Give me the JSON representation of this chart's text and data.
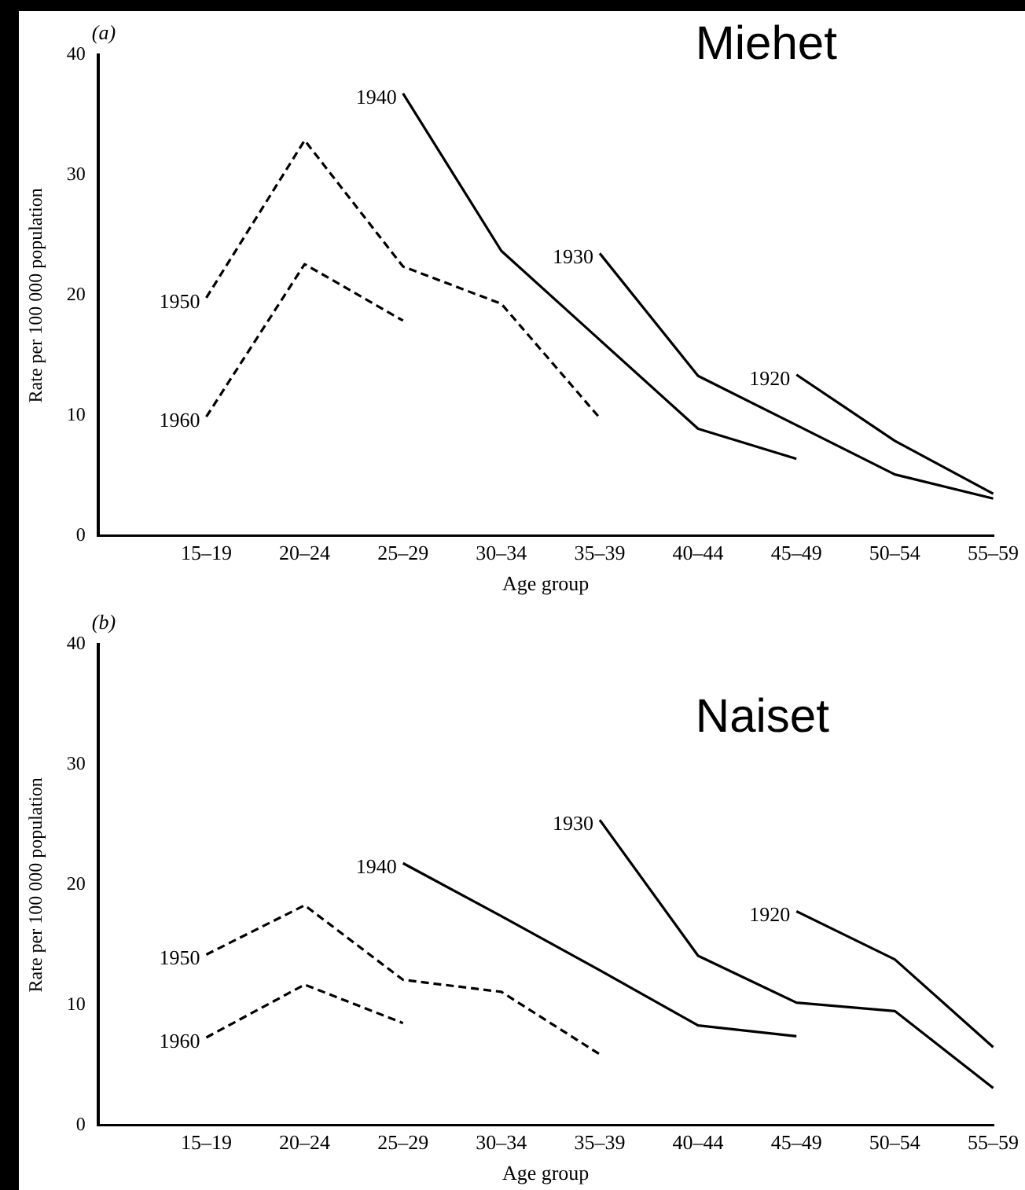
{
  "chart_data": [
    {
      "type": "line",
      "title": "Miehet",
      "annotations": [
        "(a)"
      ],
      "xlabel": "Age group",
      "ylabel": "Rate per 100 000 population",
      "categories": [
        "15–19",
        "20–24",
        "25–29",
        "30–34",
        "35–39",
        "40–44",
        "45–49",
        "50–54",
        "55–59"
      ],
      "ylim": [
        0,
        40
      ],
      "yticks": [
        0,
        10,
        20,
        30,
        40
      ],
      "grid": false,
      "legend": false,
      "marker": "none",
      "series": [
        {
          "name": "1950",
          "color": "#000000",
          "line_style": "dashed",
          "values": [
            19.8,
            32.9,
            22.4,
            19.3,
            9.8,
            null,
            null,
            null,
            null
          ]
        },
        {
          "name": "1960",
          "color": "#000000",
          "line_style": "dashed",
          "values": [
            9.9,
            22.6,
            17.9,
            null,
            null,
            null,
            null,
            null,
            null
          ]
        },
        {
          "name": "1940",
          "color": "#000000",
          "line_style": "solid",
          "values": [
            null,
            null,
            36.8,
            23.7,
            16.3,
            8.9,
            6.4,
            null,
            null
          ]
        },
        {
          "name": "1930",
          "color": "#000000",
          "line_style": "solid",
          "values": [
            null,
            null,
            null,
            null,
            23.5,
            13.3,
            9.2,
            5.1,
            3.1
          ]
        },
        {
          "name": "1920",
          "color": "#000000",
          "line_style": "solid",
          "values": [
            null,
            null,
            null,
            null,
            null,
            null,
            13.4,
            7.9,
            3.5
          ]
        }
      ]
    },
    {
      "type": "line",
      "title": "Naiset",
      "annotations": [
        "(b)"
      ],
      "xlabel": "Age group",
      "ylabel": "Rate per 100 000 population",
      "categories": [
        "15–19",
        "20–24",
        "25–29",
        "30–34",
        "35–39",
        "40–44",
        "45–49",
        "50–54",
        "55–59"
      ],
      "ylim": [
        0,
        40
      ],
      "yticks": [
        0,
        10,
        20,
        30,
        40
      ],
      "grid": false,
      "legend": false,
      "marker": "none",
      "series": [
        {
          "name": "1950",
          "color": "#000000",
          "line_style": "dashed",
          "values": [
            14.2,
            18.3,
            12.1,
            11.1,
            5.9,
            null,
            null,
            null,
            null
          ]
        },
        {
          "name": "1960",
          "color": "#000000",
          "line_style": "dashed",
          "values": [
            7.3,
            11.7,
            8.5,
            null,
            null,
            null,
            null,
            null,
            null
          ]
        },
        {
          "name": "1940",
          "color": "#000000",
          "line_style": "solid",
          "values": [
            null,
            null,
            21.8,
            17.4,
            12.9,
            8.3,
            7.4,
            null,
            null
          ]
        },
        {
          "name": "1930",
          "color": "#000000",
          "line_style": "solid",
          "values": [
            null,
            null,
            null,
            null,
            25.4,
            14.1,
            10.2,
            9.5,
            3.1
          ]
        },
        {
          "name": "1920",
          "color": "#000000",
          "line_style": "solid",
          "values": [
            null,
            null,
            null,
            null,
            null,
            null,
            17.8,
            13.8,
            6.5
          ]
        }
      ]
    }
  ]
}
